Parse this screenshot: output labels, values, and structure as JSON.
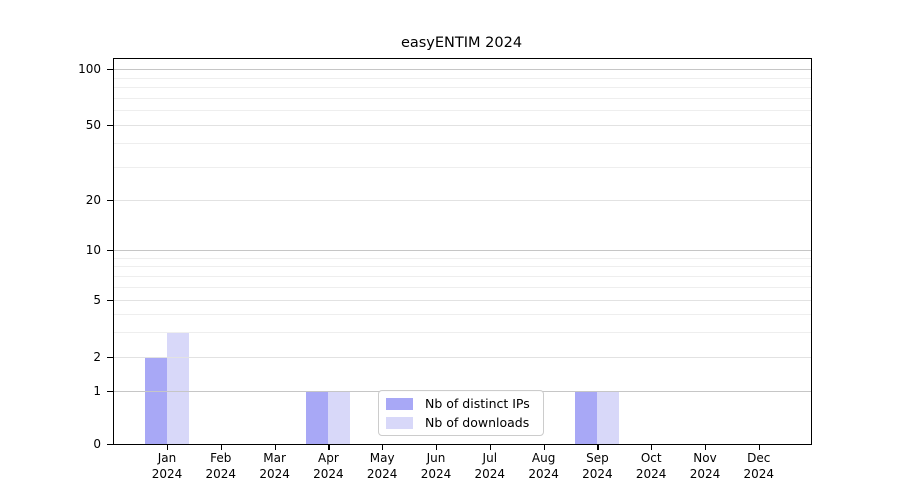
{
  "title": "easyENTIM 2024",
  "colors": {
    "grid_power": "#c6c6c6",
    "grid_labeled": "#e2e2e2",
    "grid_minor": "#eeeeee",
    "spine": "#000000",
    "background": "#ffffff"
  },
  "chart_data": {
    "type": "bar",
    "title": "easyENTIM 2024",
    "xlabel": "",
    "ylabel": "",
    "x_tick_labels": [
      {
        "month": "Jan",
        "year": "2024"
      },
      {
        "month": "Feb",
        "year": "2024"
      },
      {
        "month": "Mar",
        "year": "2024"
      },
      {
        "month": "Apr",
        "year": "2024"
      },
      {
        "month": "May",
        "year": "2024"
      },
      {
        "month": "Jun",
        "year": "2024"
      },
      {
        "month": "Jul",
        "year": "2024"
      },
      {
        "month": "Aug",
        "year": "2024"
      },
      {
        "month": "Sep",
        "year": "2024"
      },
      {
        "month": "Oct",
        "year": "2024"
      },
      {
        "month": "Nov",
        "year": "2024"
      },
      {
        "month": "Dec",
        "year": "2024"
      }
    ],
    "series": [
      {
        "name": "Nb of distinct IPs",
        "color": "#a8a8f6",
        "values": [
          2,
          0,
          0,
          1,
          0,
          0,
          0,
          0,
          1,
          0,
          0,
          0
        ]
      },
      {
        "name": "Nb of downloads",
        "color": "#d8d8f9",
        "values": [
          3,
          0,
          0,
          1,
          0,
          0,
          0,
          0,
          1,
          0,
          0,
          0
        ]
      }
    ],
    "yscale": "asinh (linear below 1, compressed log above)",
    "ylim": [
      0,
      110
    ],
    "y_major_ticks": [
      0,
      1,
      2,
      5,
      10,
      20,
      50,
      100
    ],
    "y_minor_ticks": [
      3,
      4,
      6,
      7,
      8,
      9,
      30,
      40,
      60,
      70,
      80,
      90
    ],
    "grid": true,
    "grid_above_bars": true,
    "legend_position": "lower center"
  }
}
